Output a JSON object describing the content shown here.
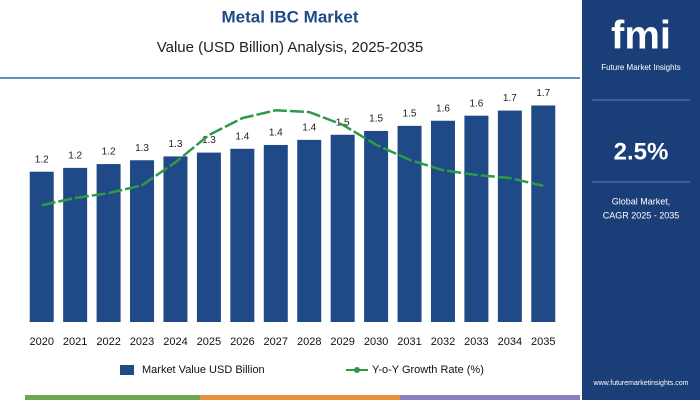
{
  "chart_data": {
    "type": "bar",
    "title": "Metal IBC Market",
    "subtitle": "Value (USD Billion) Analysis, 2025-2035",
    "categories": [
      "2020",
      "2021",
      "2022",
      "2023",
      "2024",
      "2025",
      "2026",
      "2027",
      "2028",
      "2029",
      "2030",
      "2031",
      "2032",
      "2033",
      "2034",
      "2035"
    ],
    "ylim": [
      0,
      1.9
    ],
    "y2lim": [
      0,
      4
    ],
    "series": [
      {
        "name": "Market Value USD Billion",
        "type": "bar",
        "color": "#1f4a87",
        "values": [
          1.18,
          1.21,
          1.24,
          1.27,
          1.3,
          1.33,
          1.36,
          1.39,
          1.43,
          1.47,
          1.5,
          1.54,
          1.58,
          1.62,
          1.66,
          1.7
        ],
        "value_labels": [
          "1.2",
          "1.2",
          "1.2",
          "1.3",
          "1.3",
          "1.3",
          "1.4",
          "1.4",
          "1.4",
          "1.5",
          "1.5",
          "1.5",
          "1.6",
          "1.6",
          "1.7",
          "1.7"
        ]
      },
      {
        "name": "Y-o-Y Growth Rate (%)",
        "type": "line",
        "axis": "y2",
        "color": "#2e9a45",
        "values": [
          1.93,
          2.05,
          2.13,
          2.26,
          2.64,
          3.09,
          3.37,
          3.5,
          3.47,
          3.26,
          2.93,
          2.68,
          2.51,
          2.43,
          2.38,
          2.25
        ]
      }
    ]
  },
  "panel": {
    "logo": "fmi",
    "brand": "Future Market Insights",
    "cagr": "2.5%",
    "caption_line1": "Global Market,",
    "caption_line2": "CAGR 2025 - 2035",
    "website": "www.futuremarketinsights.com"
  }
}
